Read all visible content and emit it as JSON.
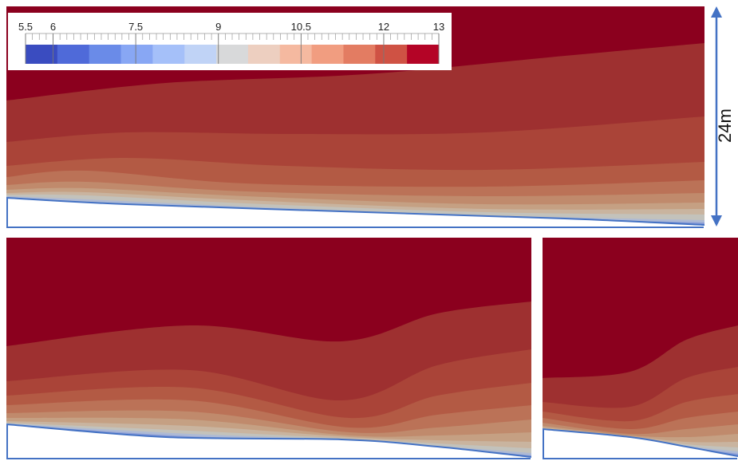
{
  "colorbar": {
    "min": 5.5,
    "max": 13,
    "tick_labels": [
      "5.5",
      "6",
      "7.5",
      "9",
      "10.5",
      "12",
      "13"
    ],
    "tick_values": [
      5.5,
      6,
      7.5,
      9,
      10.5,
      12,
      13
    ],
    "colors": [
      "#3a4cc0",
      "#4f6ad9",
      "#6a8be8",
      "#88a7f4",
      "#a5c0f9",
      "#c0d3f6",
      "#d8d9da",
      "#edcfc0",
      "#f5b9a0",
      "#f19d80",
      "#e37c62",
      "#cf5244",
      "#b40426"
    ]
  },
  "scale_label": "24m",
  "contour_colors": [
    "#8b001e",
    "#9e3030",
    "#aa4438",
    "#b35a44",
    "#bb7257",
    "#c08a6c",
    "#c5a083",
    "#c9b49f",
    "#c3c2bb",
    "#aebad4",
    "#8c9ed8"
  ],
  "outline_color": "#4472c4"
}
